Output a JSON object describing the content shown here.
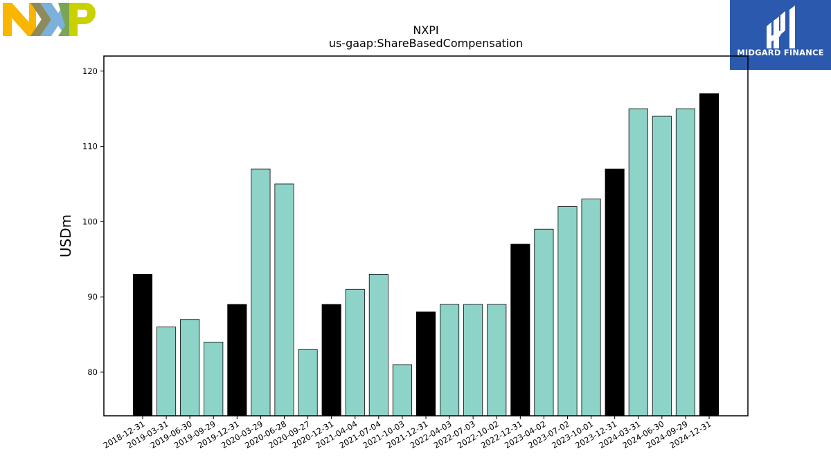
{
  "branding": {
    "company_logo_text": "NXP",
    "company_colors": [
      "#f9b500",
      "#7bb1db",
      "#c9d200"
    ],
    "publisher_logo_text": "MIDGARD FINANCE",
    "publisher_color": "#2a59ad"
  },
  "chart_data": {
    "type": "bar",
    "title": "NXPI",
    "subtitle": "us-gaap:ShareBasedCompensation",
    "xlabel": "",
    "ylabel": "USDm",
    "ylim": [
      74.2,
      122
    ],
    "yticks": [
      80,
      90,
      100,
      110,
      120
    ],
    "grid": false,
    "colors": {
      "quarter": "#8dd3c7",
      "year_end": "#000000",
      "edge": "#000000"
    },
    "categories": [
      "2018-12-31",
      "2019-03-31",
      "2019-06-30",
      "2019-09-29",
      "2019-12-31",
      "2020-03-29",
      "2020-06-28",
      "2020-09-27",
      "2020-12-31",
      "2021-04-04",
      "2021-07-04",
      "2021-10-03",
      "2021-12-31",
      "2022-04-03",
      "2022-07-03",
      "2022-10-02",
      "2022-12-31",
      "2023-04-02",
      "2023-07-02",
      "2023-10-01",
      "2023-12-31",
      "2024-03-31",
      "2024-06-30",
      "2024-09-29",
      "2024-12-31"
    ],
    "values": [
      93,
      86,
      87,
      84,
      89,
      107,
      105,
      83,
      89,
      91,
      93,
      81,
      88,
      89,
      89,
      89,
      97,
      99,
      102,
      103,
      107,
      115,
      114,
      115,
      117
    ],
    "year_end": [
      true,
      false,
      false,
      false,
      true,
      false,
      false,
      false,
      true,
      false,
      false,
      false,
      true,
      false,
      false,
      false,
      true,
      false,
      false,
      false,
      true,
      false,
      false,
      false,
      true
    ]
  }
}
